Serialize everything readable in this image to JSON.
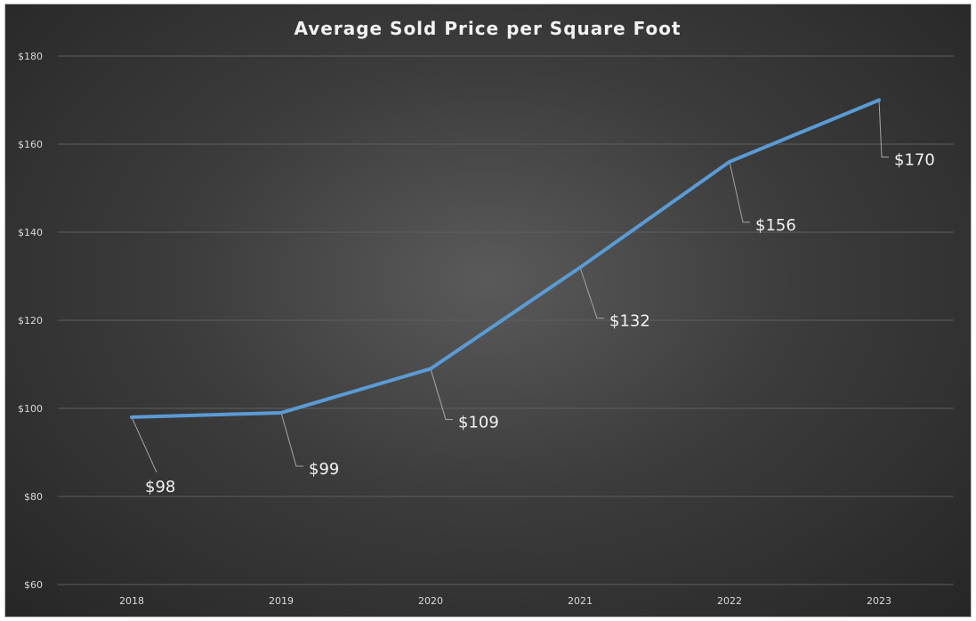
{
  "chart_data": {
    "type": "line",
    "title": "Average Sold Price per Square Foot",
    "xlabel": "",
    "ylabel": "",
    "categories": [
      "2018",
      "2019",
      "2020",
      "2021",
      "2022",
      "2023"
    ],
    "series": [
      {
        "values": [
          98,
          99,
          109,
          132,
          156,
          170
        ],
        "color": "#5b9bd5"
      }
    ],
    "data_labels": [
      "$98",
      "$99",
      "$109",
      "$132",
      "$156",
      "$170"
    ],
    "ylim": [
      60,
      180
    ],
    "yticks": [
      60,
      80,
      100,
      120,
      140,
      160,
      180
    ],
    "ytick_labels": [
      "$60",
      "$80",
      "$100",
      "$120",
      "$140",
      "$160",
      "$180"
    ],
    "grid": true,
    "legend": "none",
    "background": "dark gradient"
  }
}
